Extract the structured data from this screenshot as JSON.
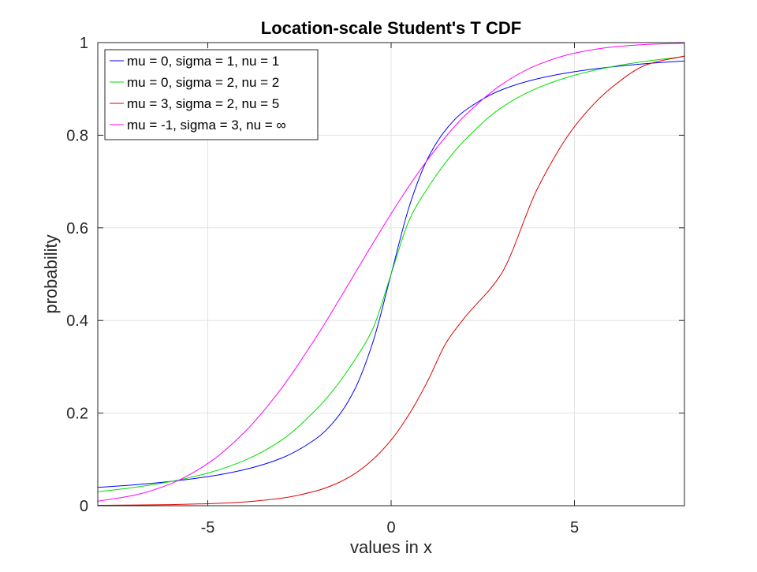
{
  "chart_data": {
    "type": "line",
    "title": "Location-scale Student's T CDF",
    "xlabel": "values in x",
    "ylabel": "probability",
    "xlim": [
      -8,
      8
    ],
    "ylim": [
      0,
      1
    ],
    "xticks": [
      -5,
      0,
      5
    ],
    "xtick_labels": [
      "-5",
      "0",
      "5"
    ],
    "yticks": [
      0,
      0.2,
      0.4,
      0.6,
      0.8,
      1
    ],
    "ytick_labels": [
      "0",
      "0.2",
      "0.4",
      "0.6",
      "0.8",
      "1"
    ],
    "grid": true,
    "legend_position": "top-left",
    "x": [
      -8,
      -7,
      -6,
      -5,
      -4,
      -3,
      -2,
      -1.5,
      -1,
      -0.5,
      0,
      0.5,
      1,
      1.5,
      2,
      3,
      4,
      5,
      6,
      7,
      8
    ],
    "series": [
      {
        "name": "mu = 0, sigma = 1, nu = 1",
        "color": "#0000ff",
        "values": [
          0.0396,
          0.0452,
          0.0526,
          0.0628,
          0.078,
          0.1024,
          0.1476,
          0.1872,
          0.25,
          0.3524,
          0.5,
          0.6476,
          0.75,
          0.8128,
          0.8524,
          0.8976,
          0.922,
          0.9372,
          0.9474,
          0.9548,
          0.9604
        ]
      },
      {
        "name": "mu = 0, sigma = 2, nu = 2",
        "color": "#00dd00",
        "values": [
          0.0301,
          0.0396,
          0.0523,
          0.0705,
          0.0979,
          0.1409,
          0.2113,
          0.2575,
          0.3139,
          0.382,
          0.5,
          0.618,
          0.6861,
          0.7425,
          0.7887,
          0.8591,
          0.9021,
          0.9295,
          0.9477,
          0.9604,
          0.9699
        ]
      },
      {
        "name": "mu = 3, sigma = 2, nu = 5",
        "color": "#dd0000",
        "values": [
          0.0008,
          0.0014,
          0.0024,
          0.0043,
          0.0082,
          0.0161,
          0.033,
          0.0475,
          0.0687,
          0.0996,
          0.1419,
          0.1986,
          0.2697,
          0.3518,
          0.4057,
          0.5,
          0.6862,
          0.8184,
          0.902,
          0.9531,
          0.971
        ]
      },
      {
        "name": "mu = -1, sigma = 3, nu = ∞",
        "color": "#ff00ff",
        "values": [
          0.0098,
          0.0228,
          0.0478,
          0.0912,
          0.1587,
          0.2525,
          0.3694,
          0.4338,
          0.5,
          0.5662,
          0.6306,
          0.6915,
          0.7475,
          0.7977,
          0.8413,
          0.9088,
          0.9522,
          0.9772,
          0.9902,
          0.9962,
          0.9987
        ]
      }
    ]
  }
}
